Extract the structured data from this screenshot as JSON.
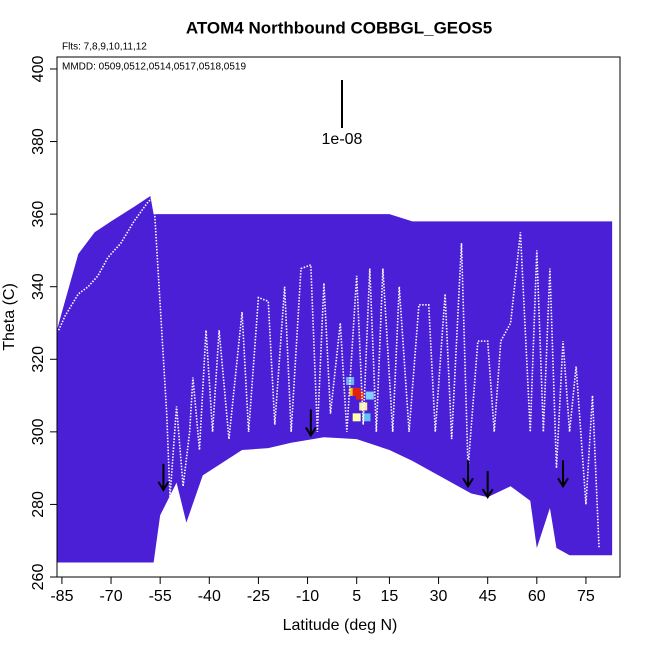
{
  "chart_data": {
    "type": "curtain",
    "title": "ATOM4 Northbound COBBGL_GEOS5",
    "subtitle": "Flts: 7,8,9,10,11,12",
    "annotation": "MMDD: 0509,0512,0514,0517,0518,0519",
    "scale_label": "1e-08",
    "x_label": "Latitude (deg N)",
    "y_label": "Theta (C)",
    "xlim": [
      -86.5,
      85.4
    ],
    "ylim": [
      260,
      403.3
    ],
    "xticks": [
      -85,
      -70,
      -55,
      -40,
      -25,
      -10,
      5,
      15,
      30,
      45,
      60,
      75
    ],
    "yticks": [
      260,
      280,
      300,
      320,
      340,
      360,
      380,
      400
    ],
    "curtain": {
      "color": "#4a1fd6",
      "x": [
        -86.5,
        -85,
        -80,
        -75,
        -70,
        -63,
        -58,
        -57,
        -55,
        -50,
        -47,
        -42,
        -30,
        -22,
        -15,
        -5,
        5,
        15,
        22,
        30,
        40,
        45,
        52,
        58,
        60,
        64,
        66,
        70,
        83
      ],
      "upper": [
        328,
        333,
        349,
        355,
        358,
        362,
        365,
        360,
        360,
        360,
        360,
        360,
        360,
        360,
        360,
        360,
        360,
        360,
        358,
        358,
        358,
        358,
        358,
        358,
        358,
        358,
        358,
        358,
        358
      ],
      "lower": [
        264,
        264,
        264,
        264,
        264,
        264,
        264,
        264,
        277,
        286,
        275,
        288,
        295,
        295.5,
        297,
        298.5,
        298,
        295,
        292,
        288,
        283,
        282,
        285,
        281,
        268,
        279,
        268,
        266,
        266
      ]
    },
    "hotspots": {
      "x": [
        4,
        5,
        6,
        7,
        5,
        8,
        3,
        9
      ],
      "y": [
        311,
        311,
        310,
        307,
        304,
        304,
        314,
        310
      ],
      "colors": [
        "#f0c020",
        "#e02010",
        "#e02010",
        "#f8f0a0",
        "#ffffb0",
        "#60c0f0",
        "#70b0f0",
        "#80d0f8"
      ]
    },
    "track": {
      "color": "#ffffff",
      "x": [
        -86,
        -84,
        -80,
        -77,
        -74,
        -71,
        -67,
        -63,
        -59,
        -57,
        -53,
        -52,
        -50,
        -48,
        -46,
        -45,
        -43,
        -41,
        -39,
        -37,
        -34,
        -30,
        -28,
        -25,
        -22,
        -20,
        -17,
        -15,
        -12,
        -9,
        -7,
        -5,
        -3,
        0,
        2,
        5,
        7,
        9,
        11,
        13,
        16,
        18,
        21,
        24,
        27,
        29,
        32,
        34,
        37,
        39,
        42,
        45,
        47,
        49,
        52,
        55,
        58,
        60,
        62,
        64,
        66,
        68,
        70,
        72,
        75,
        77,
        79
      ],
      "y": [
        328,
        332,
        338,
        340,
        343,
        348,
        352,
        358,
        363,
        365,
        305,
        282,
        307,
        285,
        300,
        315,
        295,
        328,
        300,
        328,
        298,
        333,
        300,
        337,
        336,
        302,
        340,
        300,
        345,
        346,
        300,
        341,
        305,
        330,
        300,
        343,
        302,
        345,
        300,
        345,
        300,
        340,
        300,
        335,
        335,
        300,
        338,
        298,
        352,
        290,
        325,
        325,
        300,
        325,
        330,
        355,
        300,
        350,
        300,
        345,
        290,
        325,
        300,
        318,
        280,
        310,
        268
      ]
    },
    "arrows": {
      "x": [
        -54,
        -9,
        39,
        45,
        68
      ],
      "y": [
        284,
        299,
        285,
        282,
        285
      ]
    }
  }
}
